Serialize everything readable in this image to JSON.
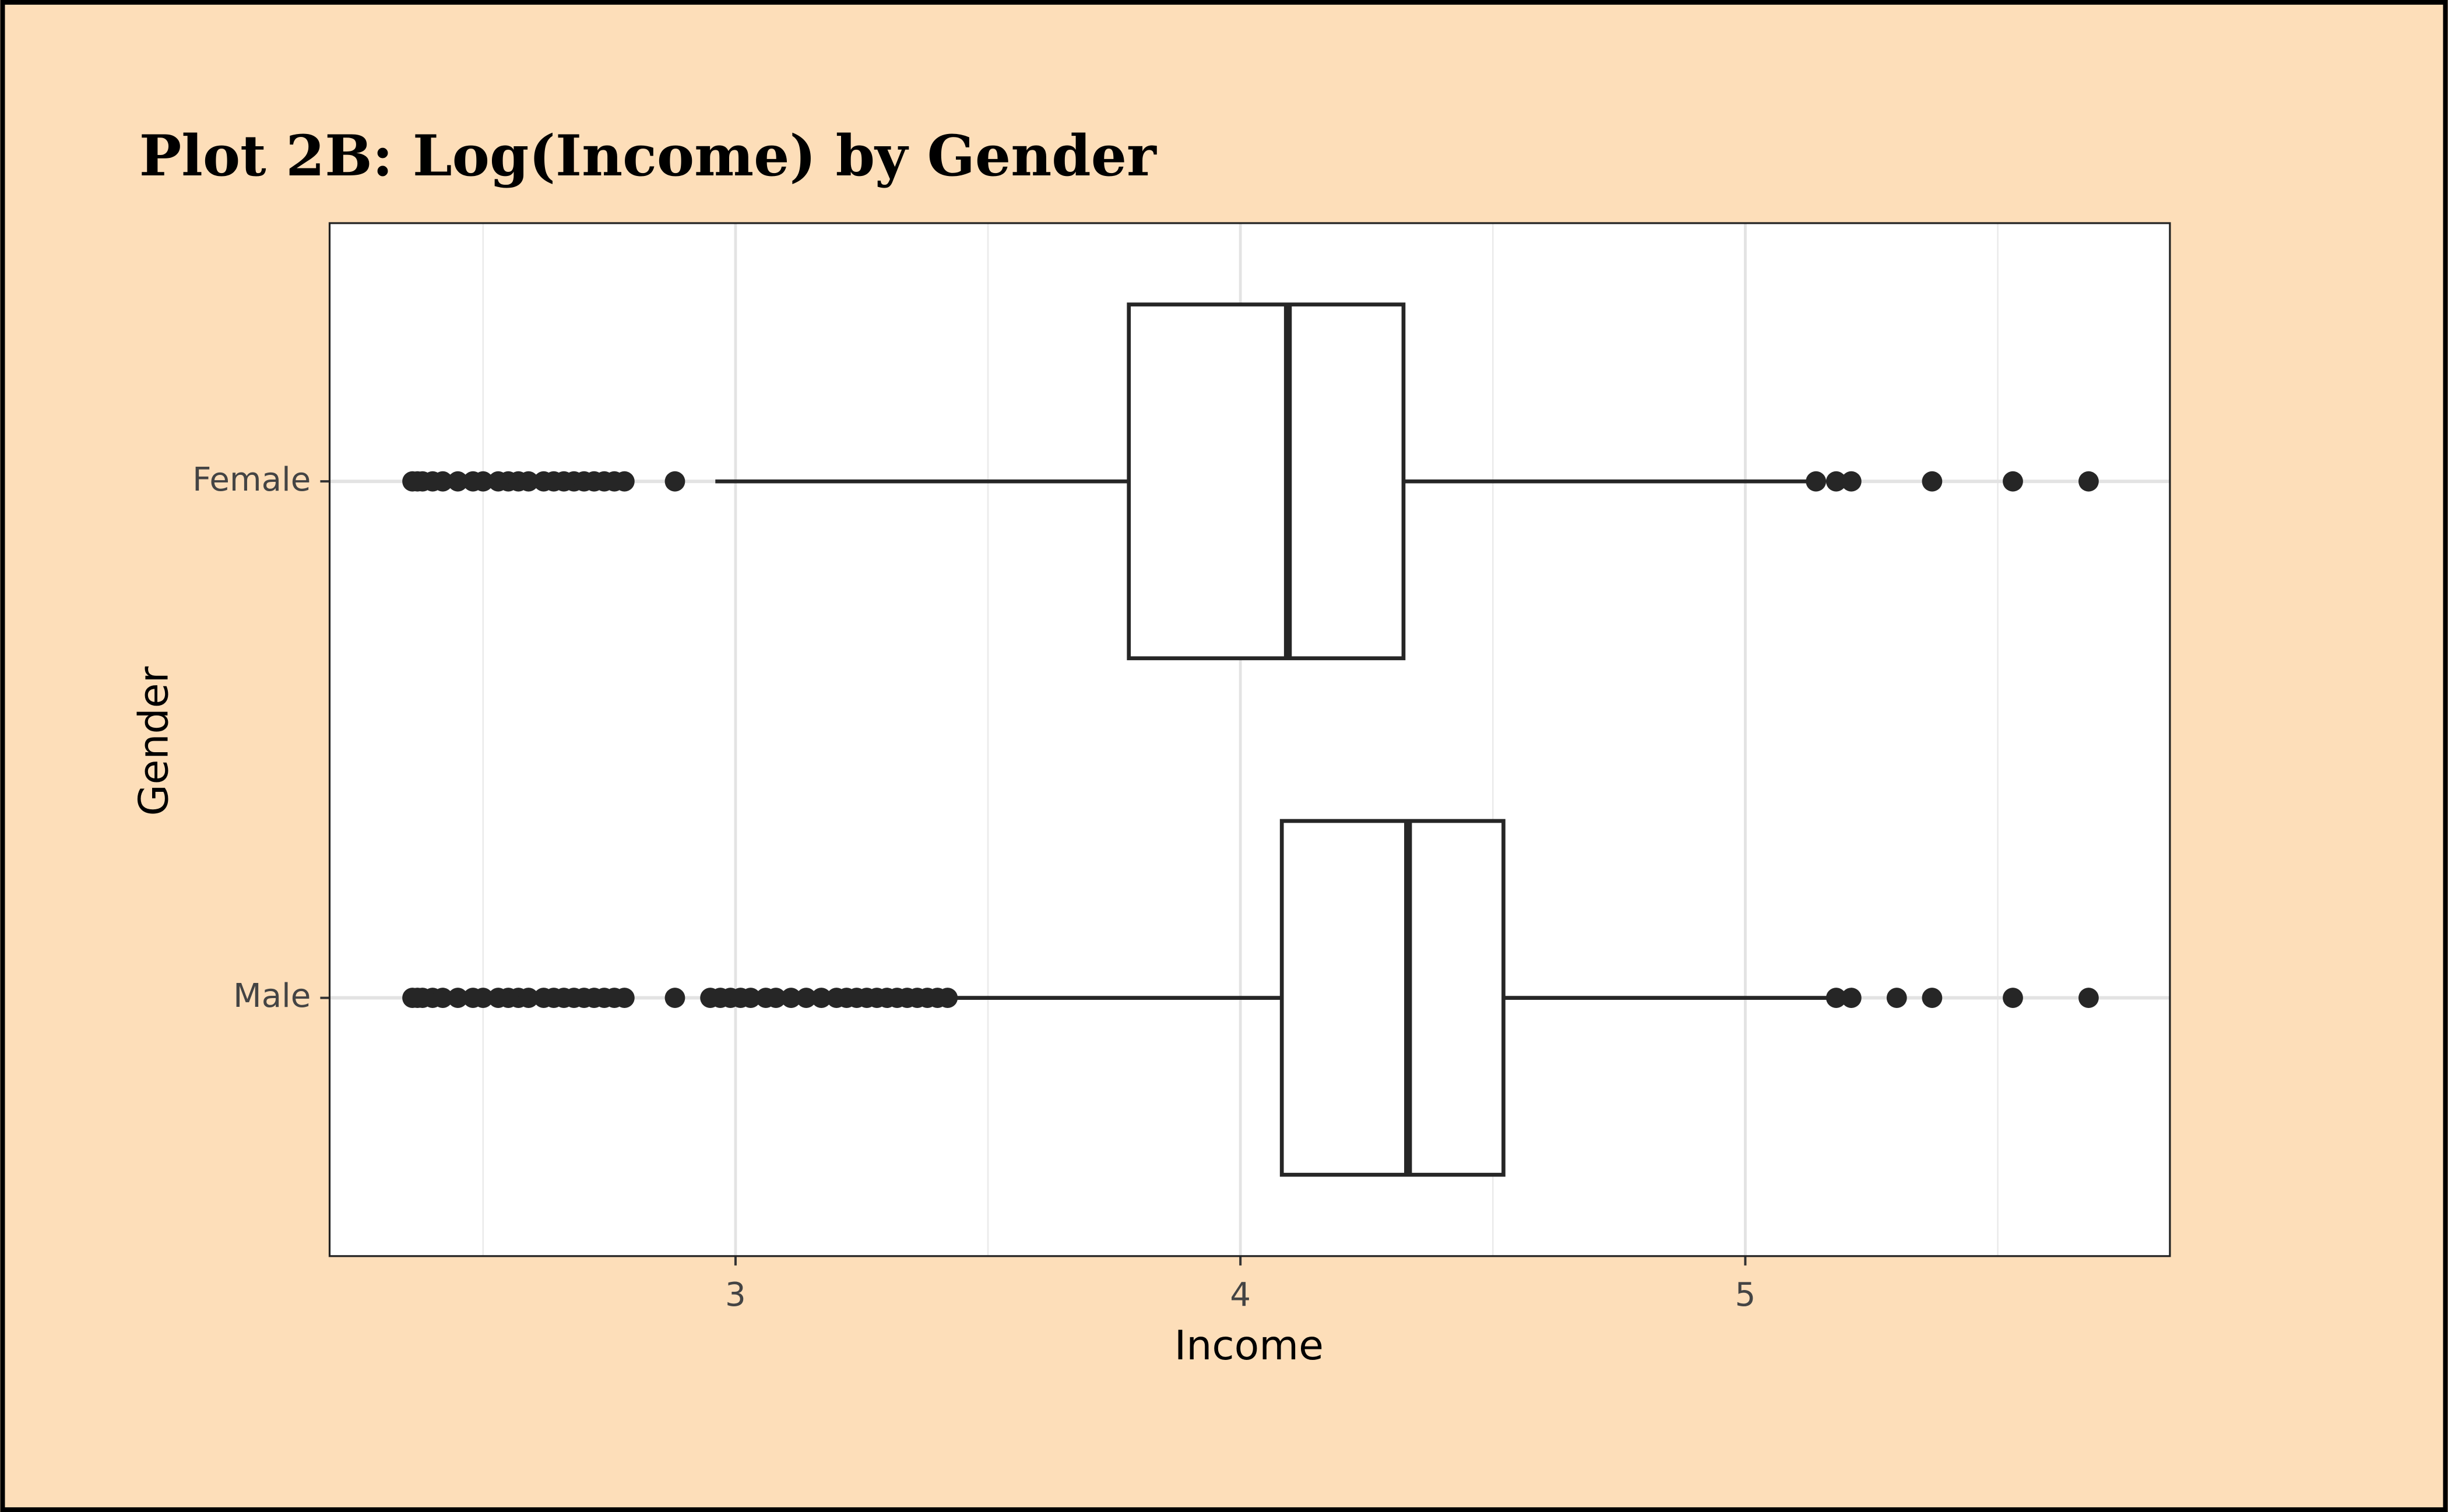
{
  "chart_data": {
    "type": "boxplot",
    "orientation": "horizontal",
    "title": "Plot 2B: Log(Income) by Gender",
    "x_label": "Income",
    "y_label": "Gender",
    "categories": [
      "Female",
      "Male"
    ],
    "boxes": [
      {
        "whisker_low": 2.96,
        "q1": 3.779,
        "median": 4.094,
        "q3": 4.323,
        "whisker_high": 5.139,
        "outliers": [
          2.36,
          2.37,
          2.38,
          2.4,
          2.42,
          2.45,
          2.48,
          2.5,
          2.53,
          2.55,
          2.57,
          2.59,
          2.62,
          2.64,
          2.66,
          2.68,
          2.7,
          2.72,
          2.74,
          2.76,
          2.78,
          2.88,
          5.14,
          5.18,
          5.21,
          5.37,
          5.53,
          5.68
        ]
      },
      {
        "whisker_low": 3.436,
        "q1": 4.082,
        "median": 4.332,
        "q3": 4.521,
        "whisker_high": 5.176,
        "outliers": [
          2.36,
          2.37,
          2.38,
          2.4,
          2.42,
          2.45,
          2.48,
          2.5,
          2.53,
          2.55,
          2.57,
          2.59,
          2.62,
          2.64,
          2.66,
          2.68,
          2.7,
          2.72,
          2.74,
          2.76,
          2.78,
          2.88,
          2.95,
          2.97,
          2.99,
          3.01,
          3.03,
          3.06,
          3.08,
          3.11,
          3.14,
          3.17,
          3.2,
          3.22,
          3.24,
          3.26,
          3.28,
          3.3,
          3.32,
          3.34,
          3.36,
          3.38,
          3.4,
          3.42,
          5.18,
          5.21,
          5.3,
          5.37,
          5.53,
          5.68
        ]
      }
    ],
    "color": "#262626",
    "xlim": [
      2.196,
      5.841
    ],
    "xticks": [
      3,
      4,
      5
    ],
    "xminor": [
      2.5,
      3.5,
      4.5,
      5.5
    ],
    "grid": true
  }
}
